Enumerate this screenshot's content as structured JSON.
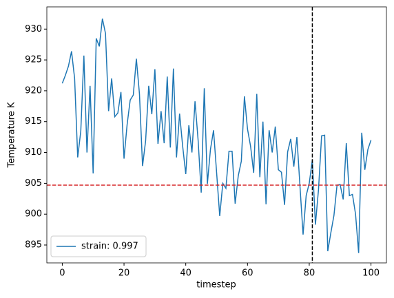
{
  "chart_data": {
    "type": "line",
    "x_label": "timestep",
    "y_label": "Temperature K",
    "x": [
      0,
      1,
      2,
      3,
      4,
      5,
      6,
      7,
      8,
      9,
      10,
      11,
      12,
      13,
      14,
      15,
      16,
      17,
      18,
      19,
      20,
      21,
      22,
      23,
      24,
      25,
      26,
      27,
      28,
      29,
      30,
      31,
      32,
      33,
      34,
      35,
      36,
      37,
      38,
      39,
      40,
      41,
      42,
      43,
      44,
      45,
      46,
      47,
      48,
      49,
      50,
      51,
      52,
      53,
      54,
      55,
      56,
      57,
      58,
      59,
      60,
      61,
      62,
      63,
      64,
      65,
      66,
      67,
      68,
      69,
      70,
      71,
      72,
      73,
      74,
      75,
      76,
      77,
      78,
      79,
      80,
      81,
      82,
      83,
      84,
      85,
      86,
      87,
      88,
      89,
      90,
      91,
      92,
      93,
      94,
      95,
      96,
      97,
      98,
      99,
      100
    ],
    "series": [
      {
        "name": "strain: 0.997",
        "color": "#1f77b4",
        "values": [
          921.2,
          922.5,
          924,
          926.4,
          922,
          909.2,
          913.5,
          925.7,
          910,
          920.8,
          906.6,
          928.5,
          927.2,
          931.7,
          929.3,
          916.7,
          922,
          915.8,
          916.4,
          919.8,
          909,
          914.5,
          918.5,
          919.3,
          925.2,
          919.5,
          907.8,
          911.9,
          920.8,
          916.2,
          923.5,
          911.4,
          916.7,
          911.5,
          922.3,
          910.8,
          923.6,
          909.2,
          916.3,
          911,
          906.5,
          914.4,
          910,
          918.3,
          912,
          903.5,
          920.4,
          904.9,
          910.5,
          913.6,
          906.7,
          899.7,
          905,
          904.2,
          910.2,
          910.2,
          901.7,
          906.2,
          908.6,
          919.1,
          913.8,
          911,
          906.7,
          919.5,
          906,
          915,
          901.6,
          913.6,
          910,
          914.2,
          907.2,
          906.8,
          901.5,
          910.1,
          912.2,
          907.7,
          912.5,
          904.5,
          896.7,
          903,
          905,
          908.8,
          898.3,
          904,
          912.7,
          912.8,
          894,
          897,
          899.8,
          904.7,
          904.8,
          902.4,
          911.5,
          903,
          903.2,
          900,
          893.7,
          913.2,
          907.2,
          910.5,
          912
        ]
      }
    ],
    "hline": {
      "value": 904.7,
      "color": "#d62728"
    },
    "vline": {
      "value": 81,
      "color": "#000000"
    },
    "xlim": [
      -5,
      105
    ],
    "ylim": [
      892.1,
      933.6
    ],
    "xticks": [
      0,
      20,
      40,
      60,
      80,
      100
    ],
    "yticks": [
      895,
      900,
      905,
      910,
      915,
      920,
      925,
      930
    ],
    "legend": "lower left"
  }
}
